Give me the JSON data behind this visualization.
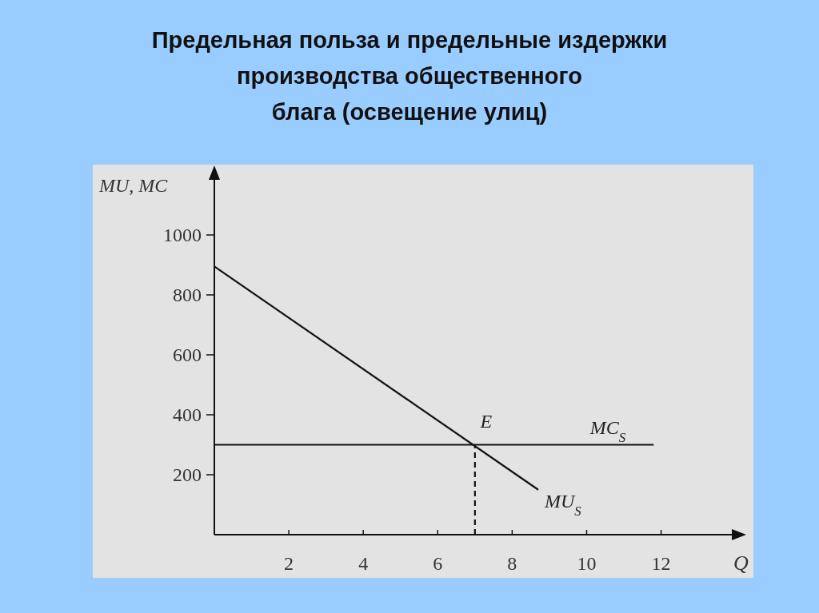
{
  "chart_data": {
    "type": "line",
    "title": "Предельная польза и предельные издержки\nпроизводства общественного\nблага (освещение улиц)",
    "xlabel": "Q",
    "ylabel": "MU, MC",
    "xlim": [
      0,
      13.9
    ],
    "ylim": [
      0,
      1184
    ],
    "xticks": [
      2,
      4,
      6,
      8,
      10,
      12
    ],
    "yticks": [
      200,
      400,
      600,
      800,
      1000
    ],
    "marker": "none",
    "series": [
      {
        "name": "MU$_{S}$",
        "color": "#111111",
        "x": [
          0,
          8.7
        ],
        "values": [
          895,
          150
        ]
      },
      {
        "name": "MC$_{S}$",
        "color": "#111111",
        "x": [
          0,
          11.8
        ],
        "values": [
          300,
          300
        ]
      },
      {
        "color": "#111111",
        "x": [
          7,
          7
        ],
        "values": [
          0,
          300
        ],
        "line_style": "dashed"
      }
    ],
    "annotations": [
      {
        "text": "E",
        "x": 7,
        "y": 300
      }
    ]
  }
}
